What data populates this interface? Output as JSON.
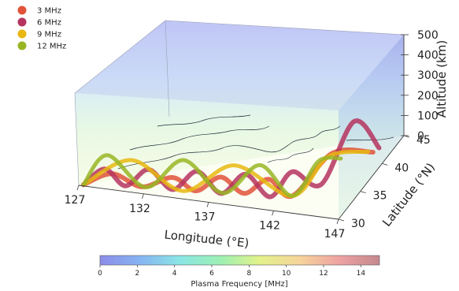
{
  "chart_data": {
    "type": "3d-ray-trace",
    "x_axis": {
      "label": "Longitude (°E)",
      "ticks": [
        127,
        132,
        137,
        142,
        147
      ],
      "range": [
        127,
        147
      ]
    },
    "y_axis": {
      "label": "Latitude (°N)",
      "ticks": [
        30,
        35,
        40,
        45
      ],
      "range": [
        30,
        45
      ]
    },
    "z_axis": {
      "label": "Altitude (km)",
      "ticks": [
        0,
        100,
        200,
        300,
        400,
        500
      ],
      "range": [
        0,
        500
      ]
    },
    "legend": {
      "placement": "top-left",
      "entries": [
        {
          "label": "3 MHz",
          "color": "#e0523a"
        },
        {
          "label": "6 MHz",
          "color": "#b5345f"
        },
        {
          "label": "9 MHz",
          "color": "#e8b810"
        },
        {
          "label": "12 MHz",
          "color": "#98b624"
        }
      ]
    },
    "colorbar": {
      "label": "Plasma Frequency [MHz]",
      "ticks": [
        0,
        2,
        4,
        6,
        8,
        10,
        12,
        14
      ],
      "range": [
        0,
        15
      ],
      "colors": [
        "#8c8ce8",
        "#86b4f2",
        "#8ae6e6",
        "#9cf0b4",
        "#e2f28a",
        "#f6d49a",
        "#eea2a2",
        "#c4888e"
      ]
    },
    "series": [
      {
        "name": "3 MHz",
        "lon": [
          127.3,
          129.3,
          131.5,
          133.8,
          135.5,
          137.3,
          139.0,
          140.8,
          142.5,
          144.5,
          146.3
        ],
        "lat": [
          30.2,
          30.8,
          31.1,
          31.3,
          31.6,
          31.9,
          32.2,
          32.4,
          32.8,
          36.0,
          40.0
        ],
        "alt": [
          0,
          55,
          0,
          60,
          0,
          75,
          0,
          80,
          0,
          140,
          50
        ]
      },
      {
        "name": "6 MHz",
        "lon": [
          127.3,
          128.8,
          130.3,
          132.0,
          133.8,
          135.6,
          137.4,
          139.2,
          141.0,
          142.5,
          144.0,
          145.5,
          146.6
        ],
        "lat": [
          30.2,
          30.6,
          30.9,
          31.1,
          31.3,
          31.5,
          31.7,
          31.9,
          32.2,
          32.8,
          35.0,
          38.0,
          40.5
        ],
        "alt": [
          0,
          80,
          0,
          90,
          0,
          100,
          0,
          105,
          0,
          120,
          10,
          250,
          60
        ]
      },
      {
        "name": "9 MHz",
        "lon": [
          127.3,
          130.8,
          134.6,
          138.4,
          142.5,
          144.5,
          146.6
        ],
        "lat": [
          30.2,
          30.8,
          31.3,
          31.8,
          32.8,
          35.0,
          38.0
        ],
        "alt": [
          0,
          135,
          0,
          145,
          0,
          150,
          110
        ]
      },
      {
        "name": "12 MHz",
        "lon": [
          127.3,
          129.0,
          131.8,
          134.6,
          137.5,
          140.2,
          142.5,
          144.2,
          145.5
        ],
        "lat": [
          30.2,
          30.6,
          31.1,
          31.4,
          31.8,
          32.2,
          32.8,
          33.8,
          35.0
        ],
        "alt": [
          0,
          150,
          0,
          150,
          0,
          150,
          0,
          160,
          150
        ]
      }
    ]
  }
}
